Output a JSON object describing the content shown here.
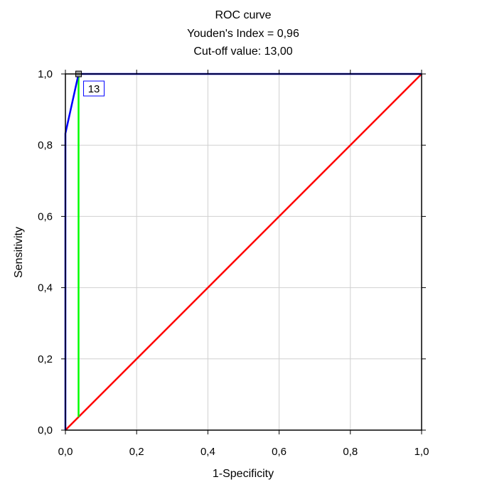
{
  "chart_data": {
    "type": "line",
    "title": "ROC curve",
    "subtitle_lines": [
      "Youden's Index  = 0,96",
      "Cut-off value: 13,00"
    ],
    "xlabel": "1-Specificity",
    "ylabel": "Sensitivity",
    "xlim": [
      0,
      1
    ],
    "ylim": [
      0,
      1
    ],
    "x_ticks": [
      "0,0",
      "0,2",
      "0,4",
      "0,6",
      "0,8",
      "1,0"
    ],
    "y_ticks": [
      "0,0",
      "0,2",
      "0,4",
      "0,6",
      "0,8",
      "1,0"
    ],
    "grid": true,
    "legend": "none",
    "series": [
      {
        "kind": "roc",
        "color": "#0000ff",
        "x": [
          0.0,
          0.0,
          0.0,
          0.037,
          0.037,
          1.0
        ],
        "y": [
          0.0,
          0.2,
          0.833,
          1.0,
          1.0,
          1.0
        ]
      },
      {
        "kind": "reference-diagonal",
        "color": "#ff0000",
        "x": [
          0.0,
          1.0
        ],
        "y": [
          0.0,
          1.0
        ]
      },
      {
        "kind": "youden-line",
        "color": "#00ff00",
        "x": [
          0.037,
          0.037
        ],
        "y": [
          0.037,
          1.0
        ]
      }
    ],
    "cutoff_point": {
      "x": 0.037,
      "y": 1.0,
      "label": "13"
    }
  }
}
